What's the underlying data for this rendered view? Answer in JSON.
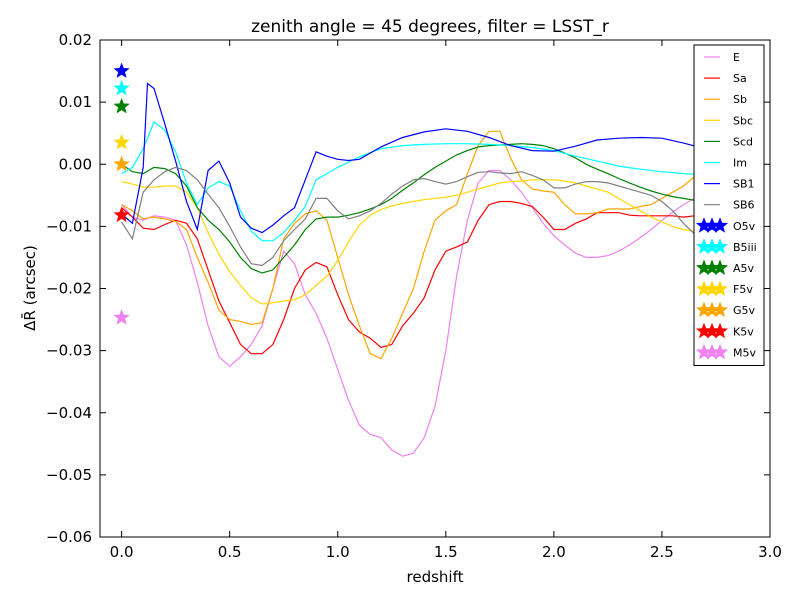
{
  "chart_data": {
    "type": "line",
    "title": "zenith angle = 45 degrees, filter = LSST_r",
    "xlabel": "redshift",
    "ylabel": "ΔR̄ (arcsec)",
    "xlim": [
      -0.1,
      3.0
    ],
    "ylim": [
      -0.06,
      0.02
    ],
    "xticks": [
      0.0,
      0.5,
      1.0,
      1.5,
      2.0,
      2.5,
      3.0
    ],
    "xtick_labels": [
      "0.0",
      "0.5",
      "1.0",
      "1.5",
      "2.0",
      "2.5",
      "3.0"
    ],
    "yticks": [
      -0.06,
      -0.05,
      -0.04,
      -0.03,
      -0.02,
      -0.01,
      0.0,
      0.01,
      0.02
    ],
    "ytick_labels": [
      "−0.06",
      "−0.05",
      "−0.04",
      "−0.03",
      "−0.02",
      "−0.01",
      "0.00",
      "0.01",
      "0.02"
    ],
    "grid": false,
    "legend_position": "top-right",
    "series": [
      {
        "name": "E",
        "color": "#ee82ee",
        "x": [
          0,
          0.05,
          0.1,
          0.15,
          0.2,
          0.25,
          0.3,
          0.35,
          0.4,
          0.45,
          0.5,
          0.55,
          0.6,
          0.65,
          0.7,
          0.75,
          0.8,
          0.85,
          0.9,
          0.95,
          1.0,
          1.05,
          1.1,
          1.15,
          1.2,
          1.25,
          1.3,
          1.35,
          1.4,
          1.45,
          1.5,
          1.55,
          1.6,
          1.65,
          1.7,
          1.75,
          1.8,
          1.85,
          1.9,
          1.95,
          2.0,
          2.05,
          2.1,
          2.15,
          2.2,
          2.25,
          2.3,
          2.35,
          2.4,
          2.45,
          2.5,
          2.55,
          2.6,
          2.65,
          2.7
        ],
        "y": [
          -0.0065,
          -0.0085,
          -0.009,
          -0.0083,
          -0.0085,
          -0.009,
          -0.013,
          -0.019,
          -0.026,
          -0.031,
          -0.0325,
          -0.031,
          -0.029,
          -0.026,
          -0.02,
          -0.014,
          -0.016,
          -0.021,
          -0.024,
          -0.028,
          -0.033,
          -0.038,
          -0.042,
          -0.0435,
          -0.044,
          -0.046,
          -0.047,
          -0.0465,
          -0.044,
          -0.039,
          -0.03,
          -0.018,
          -0.009,
          -0.003,
          -0.001,
          -0.001,
          -0.0025,
          -0.0045,
          -0.007,
          -0.0095,
          -0.0115,
          -0.013,
          -0.0143,
          -0.015,
          -0.015,
          -0.0147,
          -0.014,
          -0.013,
          -0.0118,
          -0.0105,
          -0.009,
          -0.0077,
          -0.0065,
          -0.0055,
          -0.005
        ]
      },
      {
        "name": "Sa",
        "color": "#ff0000",
        "x": [
          0,
          0.05,
          0.1,
          0.15,
          0.2,
          0.25,
          0.3,
          0.35,
          0.4,
          0.45,
          0.5,
          0.55,
          0.6,
          0.65,
          0.7,
          0.75,
          0.8,
          0.85,
          0.9,
          0.95,
          1.0,
          1.05,
          1.1,
          1.15,
          1.2,
          1.25,
          1.3,
          1.35,
          1.4,
          1.45,
          1.5,
          1.55,
          1.6,
          1.65,
          1.7,
          1.75,
          1.8,
          1.85,
          1.9,
          1.95,
          2.0,
          2.05,
          2.1,
          2.15,
          2.2,
          2.25,
          2.3,
          2.35,
          2.4,
          2.45,
          2.5,
          2.55,
          2.6,
          2.65,
          2.7
        ],
        "y": [
          -0.007,
          -0.0085,
          -0.0103,
          -0.0105,
          -0.0097,
          -0.009,
          -0.0095,
          -0.012,
          -0.017,
          -0.022,
          -0.0255,
          -0.029,
          -0.0305,
          -0.0305,
          -0.029,
          -0.025,
          -0.02,
          -0.017,
          -0.0158,
          -0.0165,
          -0.021,
          -0.025,
          -0.027,
          -0.028,
          -0.0295,
          -0.029,
          -0.026,
          -0.024,
          -0.0215,
          -0.017,
          -0.014,
          -0.0133,
          -0.0125,
          -0.009,
          -0.0065,
          -0.006,
          -0.006,
          -0.0063,
          -0.0068,
          -0.0085,
          -0.0105,
          -0.0105,
          -0.0095,
          -0.0088,
          -0.0078,
          -0.0078,
          -0.0078,
          -0.0082,
          -0.0083,
          -0.0083,
          -0.0083,
          -0.0083,
          -0.0085,
          -0.0083,
          -0.008
        ]
      },
      {
        "name": "Sb",
        "color": "#ffa500",
        "x": [
          0,
          0.05,
          0.1,
          0.15,
          0.2,
          0.25,
          0.3,
          0.35,
          0.4,
          0.45,
          0.5,
          0.55,
          0.6,
          0.65,
          0.7,
          0.75,
          0.8,
          0.85,
          0.9,
          0.95,
          1.0,
          1.05,
          1.1,
          1.15,
          1.2,
          1.25,
          1.3,
          1.35,
          1.4,
          1.45,
          1.5,
          1.55,
          1.6,
          1.65,
          1.7,
          1.75,
          1.8,
          1.85,
          1.9,
          1.95,
          2.0,
          2.05,
          2.1,
          2.15,
          2.2,
          2.25,
          2.3,
          2.35,
          2.4,
          2.45,
          2.5,
          2.55,
          2.6,
          2.65,
          2.7
        ],
        "y": [
          -0.0065,
          -0.0075,
          -0.0088,
          -0.0085,
          -0.0088,
          -0.0092,
          -0.0105,
          -0.015,
          -0.019,
          -0.0235,
          -0.025,
          -0.0253,
          -0.0258,
          -0.0255,
          -0.02,
          -0.012,
          -0.0095,
          -0.008,
          -0.0075,
          -0.009,
          -0.015,
          -0.021,
          -0.026,
          -0.0305,
          -0.0313,
          -0.028,
          -0.024,
          -0.02,
          -0.014,
          -0.009,
          -0.0075,
          -0.0065,
          -0.0015,
          0.003,
          0.0053,
          0.0053,
          0.001,
          -0.0025,
          -0.004,
          -0.0043,
          -0.0045,
          -0.0065,
          -0.008,
          -0.008,
          -0.0078,
          -0.0072,
          -0.0072,
          -0.0072,
          -0.0068,
          -0.0065,
          -0.0055,
          -0.0045,
          -0.0035,
          -0.002,
          -0.001
        ]
      },
      {
        "name": "Sbc",
        "color": "#ffd700",
        "x": [
          0,
          0.05,
          0.1,
          0.15,
          0.2,
          0.25,
          0.3,
          0.35,
          0.4,
          0.45,
          0.5,
          0.55,
          0.6,
          0.65,
          0.7,
          0.75,
          0.8,
          0.85,
          0.9,
          0.95,
          1.0,
          1.05,
          1.1,
          1.15,
          1.2,
          1.25,
          1.3,
          1.35,
          1.4,
          1.45,
          1.5,
          1.55,
          1.6,
          1.65,
          1.7,
          1.75,
          1.8,
          1.85,
          1.9,
          1.95,
          2.0,
          2.05,
          2.1,
          2.15,
          2.2,
          2.25,
          2.3,
          2.35,
          2.4,
          2.45,
          2.5,
          2.55,
          2.6,
          2.65,
          2.7
        ],
        "y": [
          -0.0028,
          -0.0032,
          -0.0037,
          -0.0037,
          -0.0035,
          -0.0035,
          -0.0045,
          -0.007,
          -0.011,
          -0.0145,
          -0.0173,
          -0.0195,
          -0.0215,
          -0.0225,
          -0.0223,
          -0.022,
          -0.0218,
          -0.021,
          -0.0195,
          -0.018,
          -0.0155,
          -0.0125,
          -0.0098,
          -0.0082,
          -0.0073,
          -0.0067,
          -0.0063,
          -0.006,
          -0.0057,
          -0.0055,
          -0.0053,
          -0.005,
          -0.0045,
          -0.004,
          -0.0035,
          -0.003,
          -0.0028,
          -0.0027,
          -0.0025,
          -0.0025,
          -0.0025,
          -0.0027,
          -0.003,
          -0.0035,
          -0.004,
          -0.0045,
          -0.0055,
          -0.0065,
          -0.0075,
          -0.0085,
          -0.0093,
          -0.01,
          -0.0105,
          -0.0108,
          -0.0105
        ]
      },
      {
        "name": "Scd",
        "color": "#008000",
        "x": [
          0,
          0.05,
          0.1,
          0.15,
          0.2,
          0.25,
          0.3,
          0.35,
          0.4,
          0.45,
          0.5,
          0.55,
          0.6,
          0.65,
          0.7,
          0.75,
          0.8,
          0.85,
          0.9,
          0.95,
          1.0,
          1.05,
          1.1,
          1.15,
          1.2,
          1.25,
          1.3,
          1.35,
          1.4,
          1.45,
          1.5,
          1.55,
          1.6,
          1.65,
          1.7,
          1.75,
          1.8,
          1.85,
          1.9,
          1.95,
          2.0,
          2.05,
          2.1,
          2.15,
          2.2,
          2.25,
          2.3,
          2.35,
          2.4,
          2.45,
          2.5,
          2.55,
          2.6,
          2.65,
          2.7
        ],
        "y": [
          0.0,
          -0.0012,
          -0.0015,
          -0.0005,
          -0.0007,
          -0.0015,
          -0.0035,
          -0.007,
          -0.009,
          -0.0105,
          -0.0125,
          -0.015,
          -0.0168,
          -0.0175,
          -0.017,
          -0.015,
          -0.013,
          -0.0105,
          -0.0088,
          -0.0085,
          -0.0085,
          -0.0082,
          -0.0078,
          -0.0072,
          -0.0065,
          -0.0055,
          -0.0042,
          -0.003,
          -0.0017,
          -0.0005,
          0.0005,
          0.0015,
          0.0022,
          0.0028,
          0.003,
          0.0031,
          0.0032,
          0.0033,
          0.0032,
          0.003,
          0.0025,
          0.0018,
          0.001,
          0.0,
          -0.0008,
          -0.0015,
          -0.0023,
          -0.003,
          -0.0037,
          -0.0043,
          -0.0048,
          -0.0052,
          -0.0055,
          -0.0058,
          -0.006
        ]
      },
      {
        "name": "Im",
        "color": "#00ffff",
        "x": [
          0,
          0.05,
          0.1,
          0.15,
          0.2,
          0.25,
          0.3,
          0.35,
          0.4,
          0.45,
          0.5,
          0.55,
          0.6,
          0.65,
          0.7,
          0.75,
          0.8,
          0.85,
          0.9,
          0.95,
          1.0,
          1.1,
          1.2,
          1.3,
          1.4,
          1.5,
          1.6,
          1.7,
          1.8,
          1.9,
          2.0,
          2.1,
          2.2,
          2.3,
          2.4,
          2.5,
          2.6,
          2.7
        ],
        "y": [
          -0.0015,
          -0.0005,
          0.0025,
          0.0068,
          0.0055,
          0.002,
          -0.003,
          -0.0065,
          -0.0038,
          -0.0028,
          -0.0035,
          -0.0075,
          -0.0108,
          -0.0123,
          -0.0123,
          -0.011,
          -0.009,
          -0.0068,
          -0.0025,
          -0.0015,
          -0.0005,
          0.0012,
          0.0025,
          0.003,
          0.0032,
          0.0033,
          0.0033,
          0.0032,
          0.003,
          0.0027,
          0.0022,
          0.0013,
          0.0005,
          -0.0003,
          -0.0008,
          -0.0012,
          -0.0015,
          -0.0017
        ]
      },
      {
        "name": "SB1",
        "color": "#0000ff",
        "x": [
          0,
          0.05,
          0.1,
          0.12,
          0.15,
          0.2,
          0.25,
          0.3,
          0.35,
          0.4,
          0.45,
          0.5,
          0.55,
          0.6,
          0.65,
          0.7,
          0.75,
          0.8,
          0.85,
          0.9,
          0.95,
          1.0,
          1.05,
          1.1,
          1.2,
          1.3,
          1.4,
          1.5,
          1.6,
          1.7,
          1.8,
          1.9,
          2.0,
          2.1,
          2.2,
          2.3,
          2.4,
          2.5,
          2.6,
          2.7
        ],
        "y": [
          -0.008,
          -0.0095,
          -0.0005,
          0.013,
          0.0122,
          0.0065,
          0.0005,
          -0.006,
          -0.0105,
          -0.001,
          0.0005,
          -0.003,
          -0.0085,
          -0.0103,
          -0.011,
          -0.0098,
          -0.0083,
          -0.007,
          -0.0025,
          0.002,
          0.0013,
          0.0008,
          0.0006,
          0.0008,
          0.0028,
          0.0043,
          0.0052,
          0.0057,
          0.0053,
          0.0043,
          0.003,
          0.0022,
          0.0021,
          0.0029,
          0.0039,
          0.0042,
          0.0043,
          0.0042,
          0.0034,
          0.0025
        ]
      },
      {
        "name": "SB6",
        "color": "#808080",
        "x": [
          0,
          0.05,
          0.1,
          0.15,
          0.2,
          0.25,
          0.3,
          0.35,
          0.4,
          0.45,
          0.5,
          0.55,
          0.6,
          0.65,
          0.7,
          0.75,
          0.8,
          0.85,
          0.9,
          0.95,
          1.0,
          1.05,
          1.1,
          1.15,
          1.2,
          1.25,
          1.3,
          1.35,
          1.4,
          1.45,
          1.5,
          1.55,
          1.6,
          1.65,
          1.7,
          1.75,
          1.8,
          1.85,
          1.9,
          1.95,
          2.0,
          2.05,
          2.1,
          2.15,
          2.2,
          2.25,
          2.3,
          2.35,
          2.4,
          2.45,
          2.5,
          2.55,
          2.6,
          2.65,
          2.7
        ],
        "y": [
          -0.0093,
          -0.012,
          -0.0045,
          -0.0025,
          -0.0012,
          -0.0005,
          -0.001,
          -0.0025,
          -0.0048,
          -0.007,
          -0.01,
          -0.0133,
          -0.016,
          -0.0163,
          -0.015,
          -0.0123,
          -0.0105,
          -0.0088,
          -0.0055,
          -0.0055,
          -0.0075,
          -0.0088,
          -0.0083,
          -0.0075,
          -0.0063,
          -0.0048,
          -0.0035,
          -0.0025,
          -0.0023,
          -0.0028,
          -0.0032,
          -0.0028,
          -0.002,
          -0.0013,
          -0.0012,
          -0.0014,
          -0.0015,
          -0.0012,
          -0.0018,
          -0.0025,
          -0.0038,
          -0.0038,
          -0.0032,
          -0.0028,
          -0.0028,
          -0.003,
          -0.0035,
          -0.004,
          -0.0045,
          -0.005,
          -0.006,
          -0.0075,
          -0.0095,
          -0.0112,
          -0.0118
        ]
      }
    ],
    "stars": [
      {
        "name": "O5v",
        "color": "#0000ff",
        "x": 0.0,
        "y": 0.015
      },
      {
        "name": "B5iii",
        "color": "#00ffff",
        "x": 0.0,
        "y": 0.0122
      },
      {
        "name": "A5v",
        "color": "#008000",
        "x": 0.0,
        "y": 0.0093
      },
      {
        "name": "F5v",
        "color": "#ffd700",
        "x": 0.0,
        "y": 0.0035
      },
      {
        "name": "G5v",
        "color": "#ffa500",
        "x": 0.0,
        "y": 0.0
      },
      {
        "name": "K5v",
        "color": "#ff0000",
        "x": 0.0,
        "y": -0.0082
      },
      {
        "name": "M5v",
        "color": "#ee82ee",
        "x": 0.0,
        "y": -0.0247
      }
    ]
  }
}
